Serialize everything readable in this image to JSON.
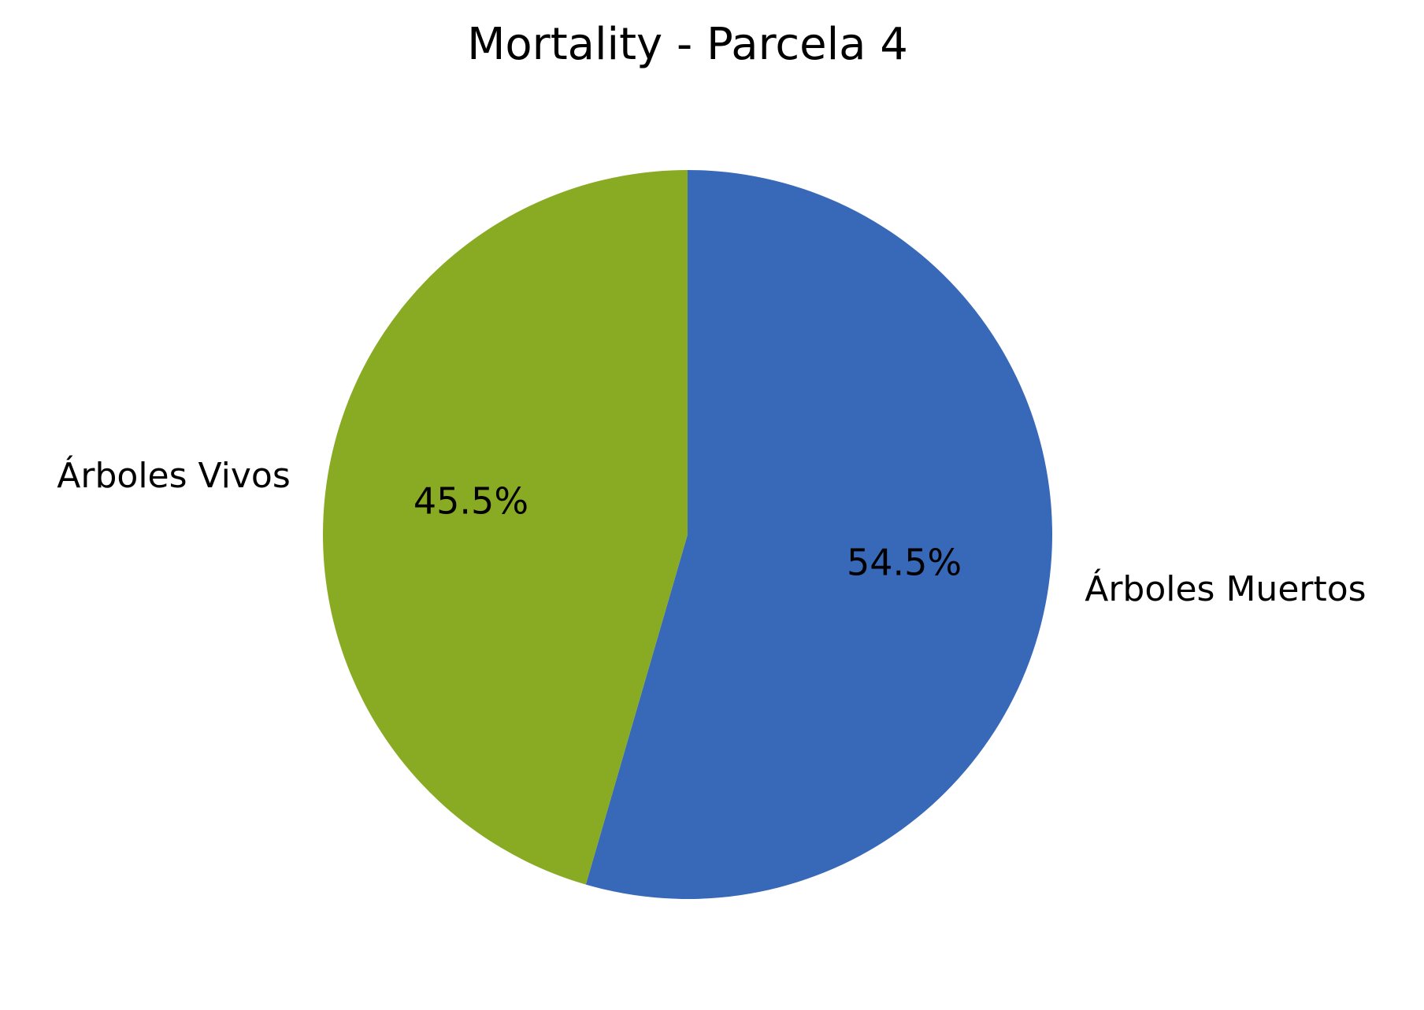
{
  "chart_data": {
    "type": "pie",
    "title": "Mortality - Parcela 4",
    "labels": [
      "Árboles Muertos",
      "Árboles Vivos"
    ],
    "values": [
      54.5,
      45.5
    ],
    "percent_labels": [
      "54.5%",
      "45.5%"
    ],
    "colors": [
      "#3868b8",
      "#89ab23"
    ],
    "start_angle_deg": 90,
    "direction": "clockwise",
    "legend": "none"
  }
}
